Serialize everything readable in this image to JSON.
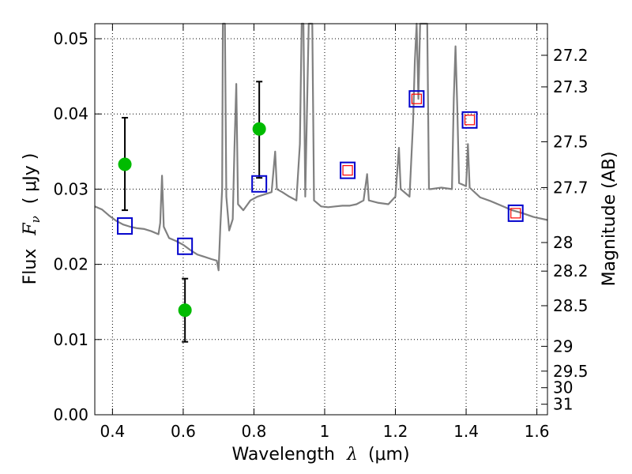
{
  "chart_data": {
    "type": "line+scatter",
    "xlabel_main": "Wavelength",
    "xlabel_symbol": "λ",
    "xlabel_unit": "(μm)",
    "ylabel_main": "Flux",
    "ylabel_symbol": "F",
    "ylabel_subscript": "ν",
    "ylabel_unit": "( μJy )",
    "y2label": "Magnitude (AB)",
    "xlim": [
      0.35,
      1.63
    ],
    "ylim": [
      0.0,
      0.052
    ],
    "xticks": [
      0.4,
      0.6,
      0.8,
      1.0,
      1.2,
      1.4,
      1.6
    ],
    "xtick_labels": [
      "0.4",
      "0.6",
      "0.8",
      "1",
      "1.2",
      "1.4",
      "1.6"
    ],
    "yticks": [
      0.0,
      0.01,
      0.02,
      0.03,
      0.04,
      0.05
    ],
    "ytick_labels": [
      "0.00",
      "0.01",
      "0.02",
      "0.03",
      "0.04",
      "0.05"
    ],
    "y2ticks": [
      {
        "label": "27.2",
        "flux": 0.0478
      },
      {
        "label": "27.3",
        "flux": 0.0436
      },
      {
        "label": "27.5",
        "flux": 0.0363
      },
      {
        "label": "27.7",
        "flux": 0.0302
      },
      {
        "label": "28",
        "flux": 0.0229
      },
      {
        "label": "28.2",
        "flux": 0.0191
      },
      {
        "label": "28.5",
        "flux": 0.0145
      },
      {
        "label": "29",
        "flux": 0.0091
      },
      {
        "label": "29.5",
        "flux": 0.0058
      },
      {
        "label": "30",
        "flux": 0.0036
      },
      {
        "label": "31",
        "flux": 0.0014
      }
    ],
    "grid": true,
    "colors": {
      "spectrum": "#808080",
      "model_box": "#0000cc",
      "observed_box": "#ff0000",
      "detection": "#00bb00",
      "errorbar": "#000000"
    },
    "spectrum": [
      [
        0.35,
        0.0277
      ],
      [
        0.37,
        0.0273
      ],
      [
        0.39,
        0.0265
      ],
      [
        0.41,
        0.0258
      ],
      [
        0.43,
        0.0253
      ],
      [
        0.45,
        0.025
      ],
      [
        0.47,
        0.0248
      ],
      [
        0.49,
        0.0247
      ],
      [
        0.51,
        0.0244
      ],
      [
        0.53,
        0.024
      ],
      [
        0.535,
        0.0255
      ],
      [
        0.54,
        0.0318
      ],
      [
        0.545,
        0.025
      ],
      [
        0.56,
        0.0235
      ],
      [
        0.58,
        0.0231
      ],
      [
        0.6,
        0.0226
      ],
      [
        0.62,
        0.0219
      ],
      [
        0.64,
        0.0213
      ],
      [
        0.66,
        0.021
      ],
      [
        0.68,
        0.0207
      ],
      [
        0.695,
        0.0205
      ],
      [
        0.7,
        0.0192
      ],
      [
        0.705,
        0.025
      ],
      [
        0.71,
        0.03
      ],
      [
        0.712,
        0.052
      ],
      [
        0.718,
        0.052
      ],
      [
        0.722,
        0.029
      ],
      [
        0.73,
        0.0245
      ],
      [
        0.74,
        0.026
      ],
      [
        0.745,
        0.0355
      ],
      [
        0.75,
        0.044
      ],
      [
        0.755,
        0.028
      ],
      [
        0.77,
        0.0272
      ],
      [
        0.79,
        0.0285
      ],
      [
        0.81,
        0.029
      ],
      [
        0.83,
        0.0293
      ],
      [
        0.85,
        0.0296
      ],
      [
        0.86,
        0.035
      ],
      [
        0.865,
        0.03
      ],
      [
        0.88,
        0.0296
      ],
      [
        0.9,
        0.029
      ],
      [
        0.92,
        0.0285
      ],
      [
        0.93,
        0.036
      ],
      [
        0.935,
        0.052
      ],
      [
        0.94,
        0.052
      ],
      [
        0.945,
        0.029
      ],
      [
        0.955,
        0.052
      ],
      [
        0.965,
        0.052
      ],
      [
        0.97,
        0.0285
      ],
      [
        0.99,
        0.0277
      ],
      [
        1.01,
        0.0276
      ],
      [
        1.03,
        0.0277
      ],
      [
        1.05,
        0.0278
      ],
      [
        1.07,
        0.0278
      ],
      [
        1.09,
        0.028
      ],
      [
        1.11,
        0.0285
      ],
      [
        1.12,
        0.032
      ],
      [
        1.125,
        0.0285
      ],
      [
        1.15,
        0.0282
      ],
      [
        1.18,
        0.028
      ],
      [
        1.2,
        0.029
      ],
      [
        1.21,
        0.0355
      ],
      [
        1.215,
        0.03
      ],
      [
        1.24,
        0.029
      ],
      [
        1.25,
        0.039
      ],
      [
        1.255,
        0.047
      ],
      [
        1.26,
        0.052
      ],
      [
        1.265,
        0.042
      ],
      [
        1.27,
        0.052
      ],
      [
        1.275,
        0.052
      ],
      [
        1.28,
        0.052
      ],
      [
        1.285,
        0.052
      ],
      [
        1.29,
        0.052
      ],
      [
        1.295,
        0.03
      ],
      [
        1.3,
        0.03
      ],
      [
        1.33,
        0.0302
      ],
      [
        1.36,
        0.03
      ],
      [
        1.365,
        0.042
      ],
      [
        1.37,
        0.049
      ],
      [
        1.375,
        0.041
      ],
      [
        1.38,
        0.0308
      ],
      [
        1.4,
        0.0304
      ],
      [
        1.405,
        0.036
      ],
      [
        1.41,
        0.0302
      ],
      [
        1.44,
        0.0289
      ],
      [
        1.47,
        0.0284
      ],
      [
        1.5,
        0.0278
      ],
      [
        1.53,
        0.0272
      ],
      [
        1.56,
        0.0268
      ],
      [
        1.59,
        0.0263
      ],
      [
        1.63,
        0.0259
      ]
    ],
    "model_points": [
      [
        0.435,
        0.0251
      ],
      [
        0.605,
        0.0224
      ],
      [
        0.815,
        0.0307
      ],
      [
        1.065,
        0.0325
      ],
      [
        1.26,
        0.042
      ],
      [
        1.41,
        0.0392
      ],
      [
        1.54,
        0.0268
      ]
    ],
    "observed_points": [
      [
        1.065,
        0.0325
      ],
      [
        1.26,
        0.042
      ],
      [
        1.41,
        0.0392
      ],
      [
        1.54,
        0.0268
      ]
    ],
    "detections": [
      {
        "x": 0.435,
        "y": 0.0333,
        "err_low": 0.0272,
        "err_high": 0.0395
      },
      {
        "x": 0.605,
        "y": 0.0139,
        "err_low": 0.0097,
        "err_high": 0.0181
      },
      {
        "x": 0.815,
        "y": 0.038,
        "err_low": 0.0315,
        "err_high": 0.0443
      }
    ]
  }
}
